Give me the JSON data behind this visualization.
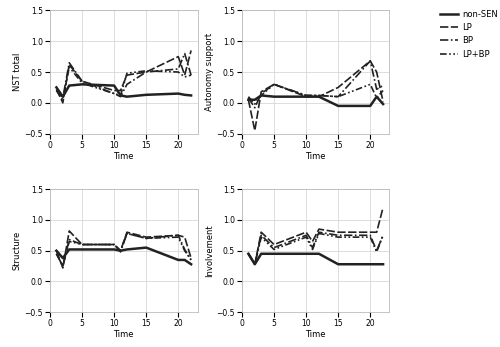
{
  "time_points": [
    1,
    2,
    3,
    5,
    10,
    11,
    12,
    15,
    20,
    21,
    22
  ],
  "nst_total": {
    "non_SEN": [
      0.25,
      0.1,
      0.28,
      0.3,
      0.28,
      0.12,
      0.1,
      0.13,
      0.15,
      0.13,
      0.12
    ],
    "LP": [
      0.22,
      0.0,
      0.62,
      0.35,
      0.2,
      0.2,
      0.45,
      0.5,
      0.75,
      0.45,
      0.85
    ],
    "BP": [
      0.2,
      0.08,
      0.65,
      0.35,
      0.15,
      0.1,
      0.3,
      0.5,
      0.55,
      0.8,
      0.45
    ],
    "LP_BP": [
      0.2,
      0.05,
      0.58,
      0.32,
      0.15,
      0.12,
      0.48,
      0.52,
      0.5,
      0.42,
      0.45
    ]
  },
  "autonomy_support": {
    "non_SEN": [
      0.05,
      0.05,
      0.12,
      0.1,
      0.1,
      0.1,
      0.1,
      -0.05,
      -0.05,
      0.1,
      -0.02
    ],
    "LP": [
      0.05,
      -0.45,
      0.18,
      0.3,
      0.1,
      0.1,
      0.1,
      0.25,
      0.68,
      0.5,
      0.02
    ],
    "BP": [
      0.08,
      -0.08,
      0.15,
      0.3,
      0.12,
      0.12,
      0.12,
      0.1,
      0.68,
      0.22,
      0.28
    ],
    "LP_BP": [
      0.1,
      -0.02,
      0.12,
      0.3,
      0.12,
      0.12,
      0.12,
      0.1,
      0.3,
      0.08,
      0.2
    ]
  },
  "structure": {
    "non_SEN": [
      0.5,
      0.38,
      0.52,
      0.52,
      0.52,
      0.5,
      0.52,
      0.55,
      0.35,
      0.35,
      0.28
    ],
    "LP": [
      0.5,
      0.22,
      0.82,
      0.6,
      0.6,
      0.5,
      0.8,
      0.72,
      0.75,
      0.72,
      0.38
    ],
    "BP": [
      0.45,
      0.25,
      0.68,
      0.6,
      0.6,
      0.48,
      0.78,
      0.7,
      0.75,
      0.52,
      0.35
    ],
    "LP_BP": [
      0.45,
      0.25,
      0.65,
      0.6,
      0.6,
      0.5,
      0.78,
      0.7,
      0.72,
      0.5,
      0.35
    ]
  },
  "involvement": {
    "non_SEN": [
      0.45,
      0.28,
      0.45,
      0.45,
      0.45,
      0.45,
      0.45,
      0.28,
      0.28,
      0.28,
      0.28
    ],
    "LP": [
      0.45,
      0.28,
      0.8,
      0.6,
      0.8,
      0.65,
      0.85,
      0.8,
      0.8,
      0.8,
      1.2
    ],
    "BP": [
      0.45,
      0.28,
      0.75,
      0.55,
      0.75,
      0.55,
      0.8,
      0.75,
      0.75,
      0.5,
      0.75
    ],
    "LP_BP": [
      0.45,
      0.28,
      0.72,
      0.52,
      0.72,
      0.52,
      0.78,
      0.72,
      0.72,
      0.48,
      0.75
    ]
  },
  "ylim": [
    -0.5,
    1.5
  ],
  "yticks": [
    -0.5,
    0.0,
    0.5,
    1.0,
    1.5
  ],
  "xticks": [
    0,
    5,
    10,
    15,
    20
  ],
  "xlim": [
    0,
    23
  ],
  "xlabel": "Time",
  "subplot_ylabels": [
    "NST total",
    "Autonomy support",
    "Structure",
    "Involvement"
  ],
  "legend_labels": [
    "non-SEN",
    "LP",
    "BP",
    "LP+BP"
  ],
  "background_color": "#ffffff",
  "grid_color": "#d0d0d0",
  "line_color": "#222222"
}
